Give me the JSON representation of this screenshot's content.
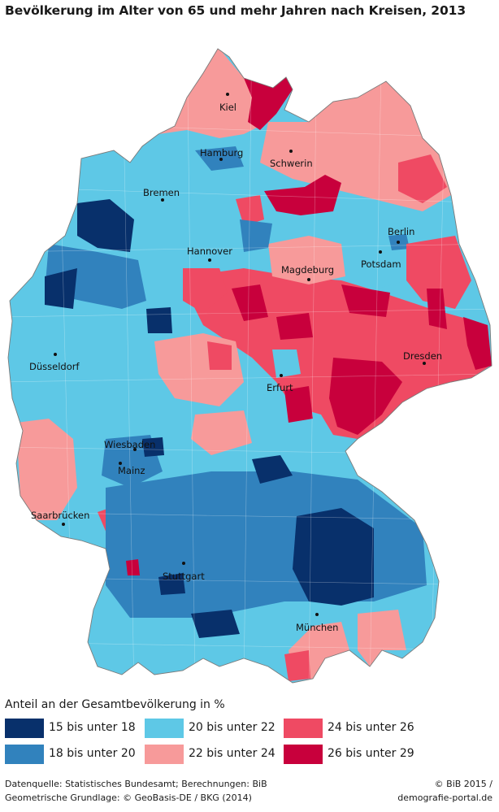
{
  "title": "Bevölkerung im Alter von 65 und mehr Jahren nach Kreisen, 2013",
  "legend": {
    "title": "Anteil an der Gesamtbevölkerung in %",
    "classes": [
      {
        "label": "15 bis unter 18",
        "color": "#08306b"
      },
      {
        "label": "18 bis unter 20",
        "color": "#3182bd"
      },
      {
        "label": "20 bis unter 22",
        "color": "#5ec8e6"
      },
      {
        "label": "22 bis unter 24",
        "color": "#f79a9a"
      },
      {
        "label": "24 bis unter 26",
        "color": "#ef4a63"
      },
      {
        "label": "26 bis unter 29",
        "color": "#c8003c"
      }
    ]
  },
  "cities": {
    "kiel": "Kiel",
    "hamburg": "Hamburg",
    "schwerin": "Schwerin",
    "bremen": "Bremen",
    "berlin": "Berlin",
    "potsdam": "Potsdam",
    "hannover": "Hannover",
    "magdeburg": "Magdeburg",
    "duesseldorf": "Düsseldorf",
    "dresden": "Dresden",
    "erfurt": "Erfurt",
    "wiesbaden": "Wiesbaden",
    "mainz": "Mainz",
    "saarbruecken": "Saarbrücken",
    "stuttgart": "Stuttgart",
    "muenchen": "München"
  },
  "source_line1": "Datenquelle: Statistisches Bundesamt; Berechnungen: BiB",
  "source_line2": "Geometrische Grundlage: © GeoBasis-DE / BKG (2014)",
  "credit_line1": "© BiB 2015 /",
  "credit_line2": "demografie-portal.de"
}
